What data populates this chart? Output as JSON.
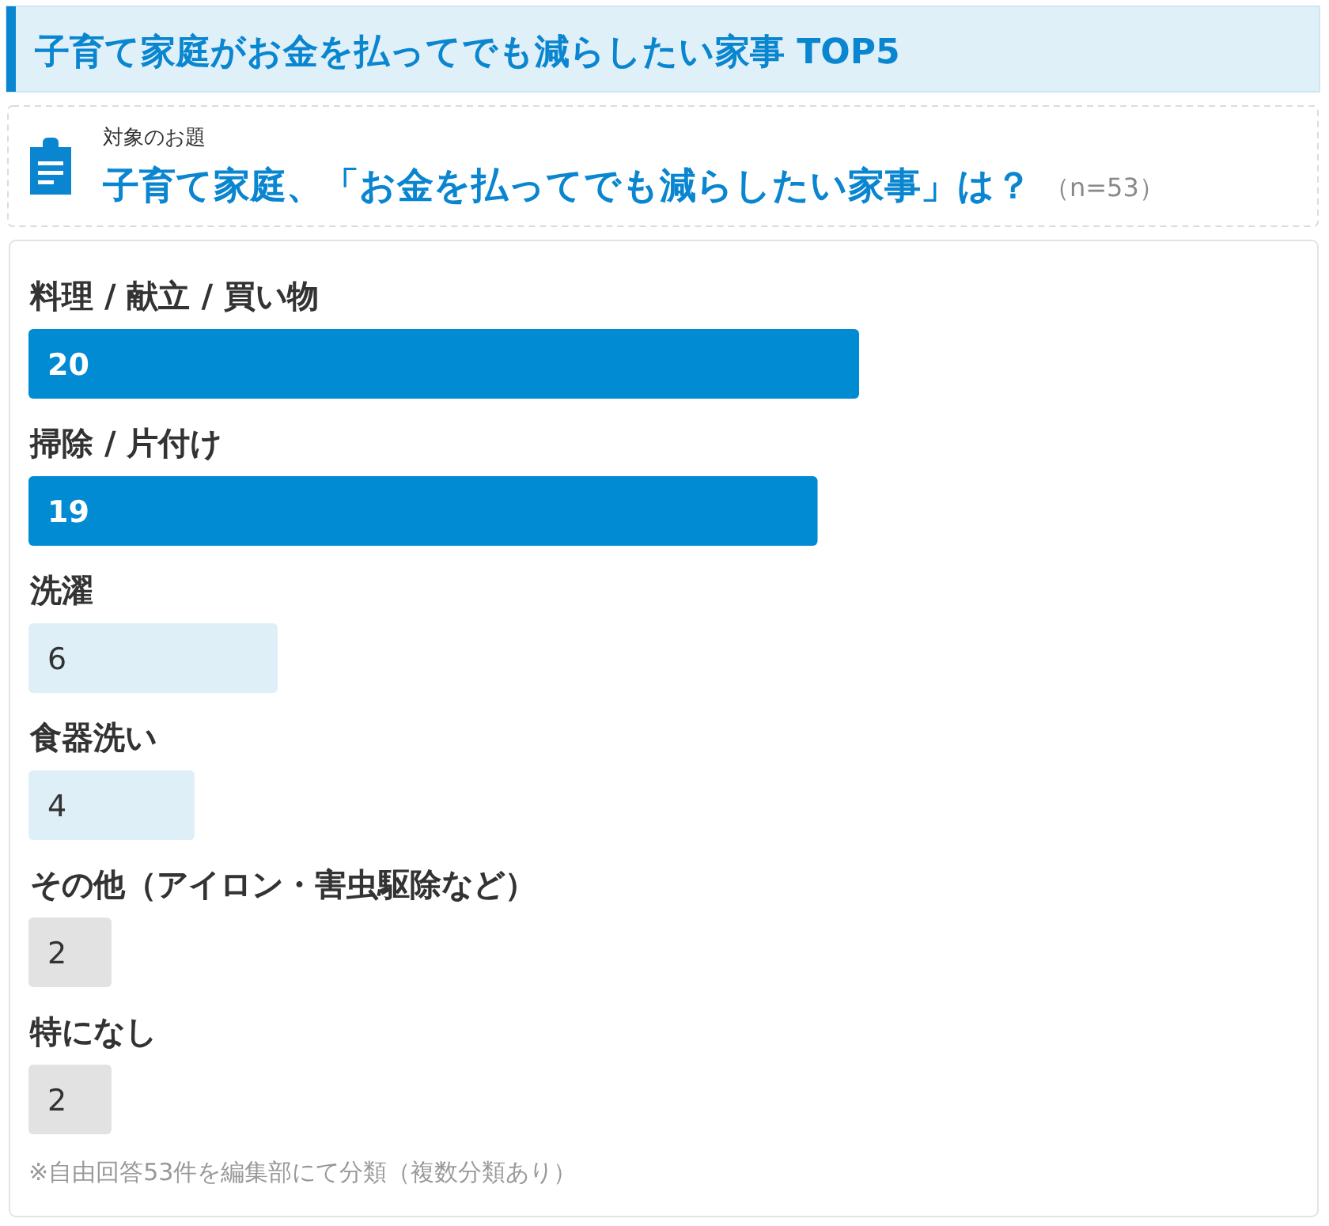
{
  "chart_data": {
    "type": "bar",
    "orientation": "horizontal",
    "title": "子育て家庭がお金を払ってでも減らしたい家事 TOP5",
    "subtitle": "子育て家庭、「お金を払ってでも減らしたい家事」は？",
    "annotations": [
      "対象のお題",
      "（n=53）",
      "※自由回答53件を編集部にて分類（複数分類あり）"
    ],
    "categories": [
      "料理 / 献立 / 買い物",
      "掃除 / 片付け",
      "洗濯",
      "食器洗い",
      "その他（アイロン・害虫駆除など）",
      "特になし"
    ],
    "values": [
      20,
      19,
      6,
      4,
      2,
      2
    ],
    "colors": [
      "#008bd3",
      "#008bd3",
      "#dfeff8",
      "#dfeff8",
      "#e2e2e2",
      "#e2e2e2"
    ],
    "data_labels": true
  }
}
